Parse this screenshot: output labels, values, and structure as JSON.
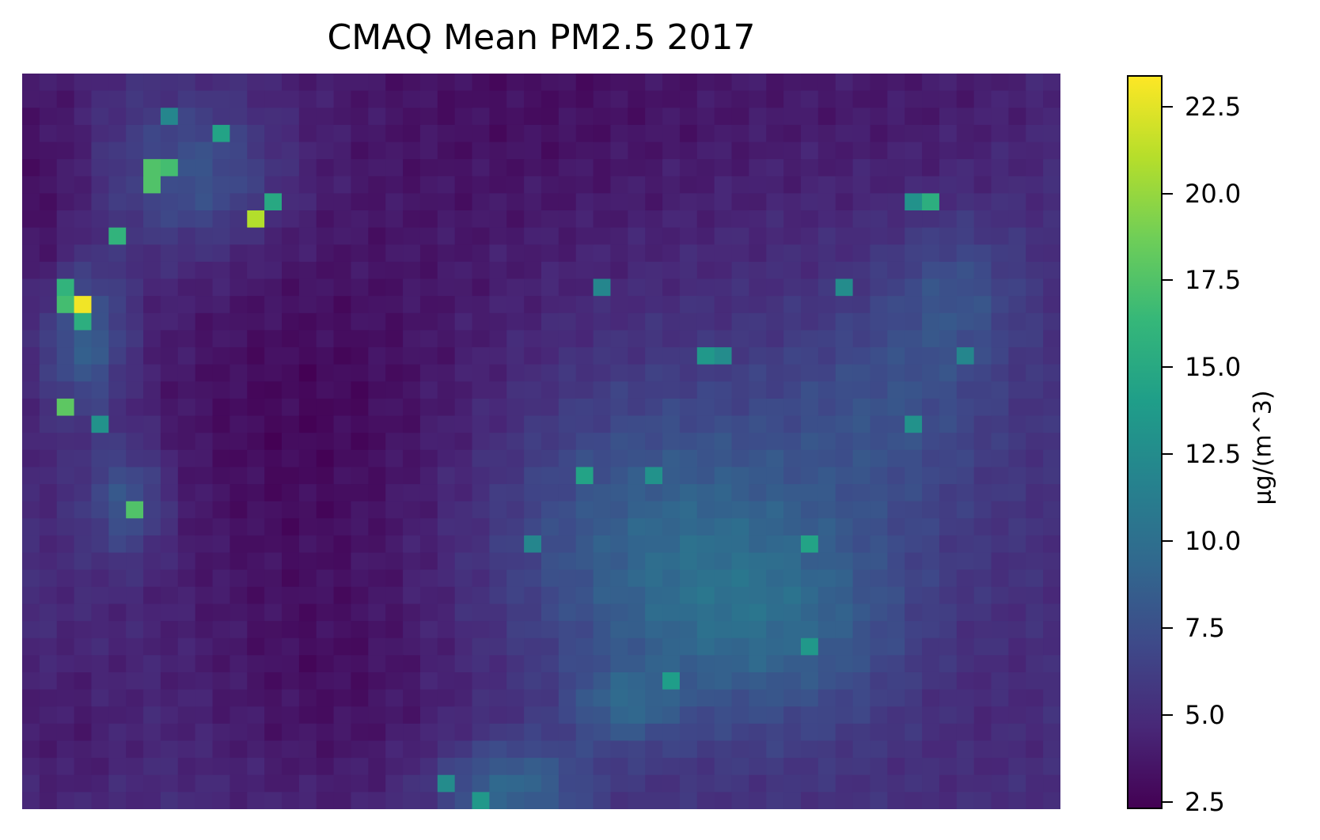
{
  "chart_data": {
    "type": "heatmap",
    "title": "CMAQ Mean PM2.5 2017",
    "colorbar": {
      "label": "μg/(m^3)",
      "range": [
        2.3,
        23.4
      ],
      "ticks": [
        2.5,
        5.0,
        7.5,
        10.0,
        12.5,
        15.0,
        17.5,
        20.0,
        22.5
      ],
      "tick_labels": [
        "2.5",
        "5.0",
        "7.5",
        "10.0",
        "12.5",
        "15.0",
        "17.5",
        "20.0",
        "22.5"
      ],
      "colormap": "viridis",
      "colormap_stops": [
        "#440154",
        "#482878",
        "#3e4989",
        "#31688e",
        "#26828e",
        "#1f9e89",
        "#35b779",
        "#6ece58",
        "#b5de2b",
        "#fde725"
      ]
    },
    "grid": {
      "rows": 43,
      "cols": 60,
      "base_value": 5.2
    },
    "regions": [
      {
        "cx": 0.5,
        "cy": 0.0,
        "rx": 0.28,
        "ry": 0.26,
        "v": -2.0
      },
      {
        "cx": 0.88,
        "cy": 0.02,
        "rx": 0.16,
        "ry": 0.16,
        "v": -1.0
      },
      {
        "cx": 0.28,
        "cy": 0.48,
        "rx": 0.2,
        "ry": 0.28,
        "v": -2.4
      },
      {
        "cx": 0.3,
        "cy": 0.85,
        "rx": 0.14,
        "ry": 0.18,
        "v": -1.6
      },
      {
        "cx": 0.02,
        "cy": 0.15,
        "rx": 0.05,
        "ry": 0.25,
        "v": -1.8
      },
      {
        "cx": 0.62,
        "cy": 0.62,
        "rx": 0.18,
        "ry": 0.2,
        "v": 3.5
      },
      {
        "cx": 0.72,
        "cy": 0.75,
        "rx": 0.14,
        "ry": 0.14,
        "v": 3.0
      },
      {
        "cx": 0.84,
        "cy": 0.45,
        "rx": 0.1,
        "ry": 0.15,
        "v": 2.0
      },
      {
        "cx": 0.9,
        "cy": 0.3,
        "rx": 0.06,
        "ry": 0.1,
        "v": 2.2
      },
      {
        "cx": 0.47,
        "cy": 0.97,
        "rx": 0.07,
        "ry": 0.06,
        "v": 4.2
      },
      {
        "cx": 0.58,
        "cy": 0.86,
        "rx": 0.05,
        "ry": 0.05,
        "v": 3.0
      },
      {
        "cx": 0.06,
        "cy": 0.36,
        "rx": 0.04,
        "ry": 0.1,
        "v": 4.5
      },
      {
        "cx": 0.1,
        "cy": 0.58,
        "rx": 0.04,
        "ry": 0.08,
        "v": 3.5
      },
      {
        "cx": 0.17,
        "cy": 0.14,
        "rx": 0.08,
        "ry": 0.1,
        "v": 3.2
      },
      {
        "cx": 0.92,
        "cy": 0.84,
        "rx": 0.08,
        "ry": 0.14,
        "v": -0.6
      },
      {
        "cx": 0.04,
        "cy": 0.9,
        "rx": 0.06,
        "ry": 0.12,
        "v": -1.2
      }
    ],
    "hotspots": [
      {
        "c": 3,
        "r": 13,
        "v": 23.0
      },
      {
        "c": 2,
        "r": 13,
        "v": 17.0
      },
      {
        "c": 3,
        "r": 14,
        "v": 15.5
      },
      {
        "c": 2,
        "r": 12,
        "v": 16.0
      },
      {
        "c": 2,
        "r": 19,
        "v": 18.0
      },
      {
        "c": 4,
        "r": 20,
        "v": 13.0
      },
      {
        "c": 6,
        "r": 25,
        "v": 17.5
      },
      {
        "c": 8,
        "r": 5,
        "v": 17.0
      },
      {
        "c": 7,
        "r": 5,
        "v": 17.5
      },
      {
        "c": 7,
        "r": 6,
        "v": 17.5
      },
      {
        "c": 5,
        "r": 9,
        "v": 16.0
      },
      {
        "c": 8,
        "r": 2,
        "v": 12.0
      },
      {
        "c": 11,
        "r": 3,
        "v": 14.5
      },
      {
        "c": 13,
        "r": 8,
        "v": 21.0
      },
      {
        "c": 14,
        "r": 7,
        "v": 15.0
      },
      {
        "c": 32,
        "r": 23,
        "v": 14.5
      },
      {
        "c": 39,
        "r": 16,
        "v": 13.5
      },
      {
        "c": 40,
        "r": 16,
        "v": 12.5
      },
      {
        "c": 36,
        "r": 23,
        "v": 13.0
      },
      {
        "c": 45,
        "r": 27,
        "v": 14.5
      },
      {
        "c": 45,
        "r": 33,
        "v": 13.5
      },
      {
        "c": 37,
        "r": 35,
        "v": 14.0
      },
      {
        "c": 52,
        "r": 7,
        "v": 15.5
      },
      {
        "c": 51,
        "r": 7,
        "v": 13.0
      },
      {
        "c": 51,
        "r": 20,
        "v": 13.0
      },
      {
        "c": 47,
        "r": 12,
        "v": 12.5
      },
      {
        "c": 54,
        "r": 16,
        "v": 12.0
      },
      {
        "c": 33,
        "r": 12,
        "v": 12.0
      },
      {
        "c": 26,
        "r": 42,
        "v": 13.5
      },
      {
        "c": 24,
        "r": 41,
        "v": 12.5
      },
      {
        "c": 29,
        "r": 27,
        "v": 12.0
      }
    ]
  }
}
